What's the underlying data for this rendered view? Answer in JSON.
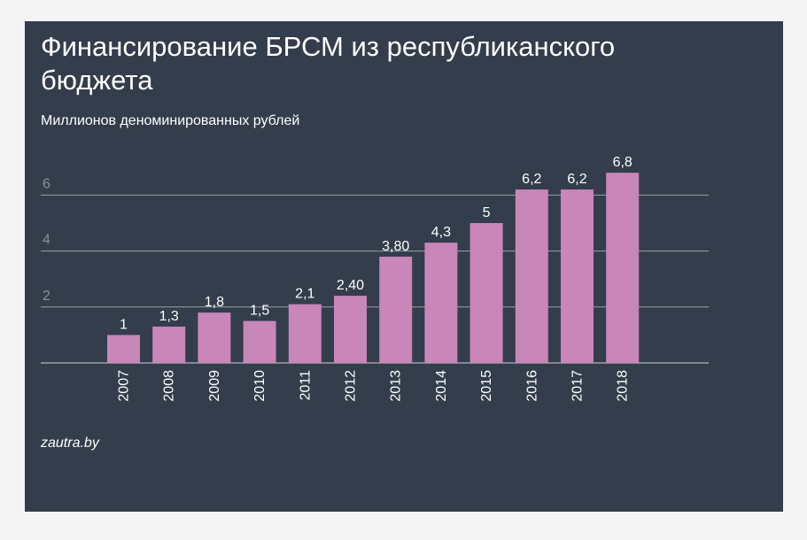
{
  "title": "Финансирование БРСМ из республиканского бюджета",
  "subtitle": "Миллионов деноминированных рублей",
  "source": "zautra.by",
  "colors": {
    "background": "#333d4b",
    "bar": "#c986b9",
    "grid": "#9aa0a8",
    "text": "#ffffff",
    "tick_text": "#8a929c"
  },
  "chart_data": {
    "type": "bar",
    "title": "Финансирование БРСМ из республиканского бюджета",
    "subtitle": "Миллионов деноминированных рублей",
    "categories": [
      "2007",
      "2008",
      "2009",
      "2010",
      "2011",
      "2012",
      "2013",
      "2014",
      "2015",
      "2016",
      "2017",
      "2018"
    ],
    "values": [
      1,
      1.3,
      1.8,
      1.5,
      2.1,
      2.4,
      3.8,
      4.3,
      5,
      6.2,
      6.2,
      6.8
    ],
    "data_labels": [
      "1",
      "1,3",
      "1,8",
      "1,5",
      "2,1",
      "2,40",
      "3,80",
      "4,3",
      "5",
      "6,2",
      "6,2",
      "6,8"
    ],
    "yticks": [
      {
        "value": 2,
        "label": "2"
      },
      {
        "value": 4,
        "label": "4"
      },
      {
        "value": 6,
        "label": "6"
      }
    ],
    "ylim": [
      0,
      7
    ],
    "grid": true,
    "legend": "none"
  }
}
